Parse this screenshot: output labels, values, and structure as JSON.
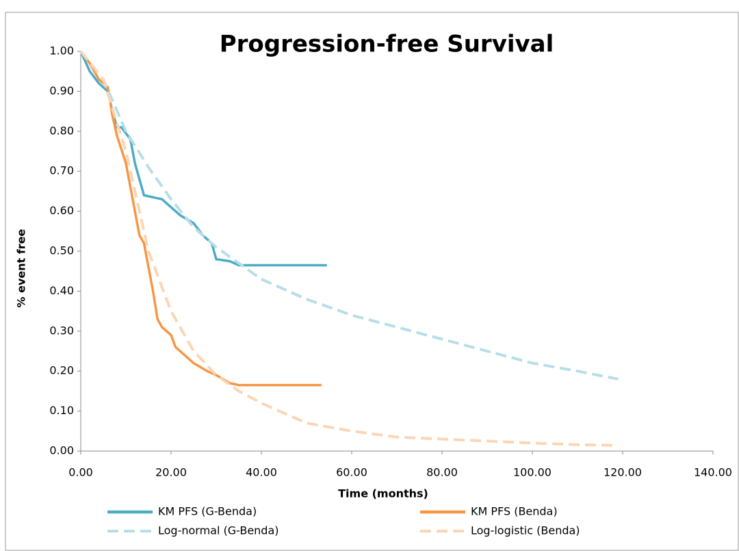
{
  "chart_data": {
    "type": "line",
    "title": "Progression-free Survival",
    "x_label": "Time (months)",
    "y_label": "% event free",
    "xlim": [
      0,
      140
    ],
    "xticks": [
      {
        "value": 0,
        "label": "0.00"
      },
      {
        "value": 20,
        "label": "20.00"
      },
      {
        "value": 40,
        "label": "40.00"
      },
      {
        "value": 60,
        "label": "60.00"
      },
      {
        "value": 80,
        "label": "80.00"
      },
      {
        "value": 100,
        "label": "100.00"
      },
      {
        "value": 120,
        "label": "120.00"
      },
      {
        "value": 140,
        "label": "140.00"
      }
    ],
    "ylim": [
      0,
      1
    ],
    "yticks": [
      {
        "value": 0,
        "label": "0.00"
      },
      {
        "value": 0.1,
        "label": "0.10"
      },
      {
        "value": 0.2,
        "label": "0.20"
      },
      {
        "value": 0.3,
        "label": "0.30"
      },
      {
        "value": 0.4,
        "label": "0.40"
      },
      {
        "value": 0.5,
        "label": "0.50"
      },
      {
        "value": 0.6,
        "label": "0.60"
      },
      {
        "value": 0.7,
        "label": "0.70"
      },
      {
        "value": 0.8,
        "label": "0.80"
      },
      {
        "value": 0.9,
        "label": "0.90"
      },
      {
        "value": 1,
        "label": "1.00"
      }
    ],
    "grid": false,
    "legend": "bottom",
    "series": [
      {
        "name": "KM PFS (G-Benda)",
        "color": "#4bacc6",
        "style": "solid",
        "x": [
          0,
          2,
          4,
          6,
          7,
          8,
          9,
          11,
          12,
          13,
          14,
          16,
          18,
          20,
          22,
          25,
          27,
          29,
          30,
          33,
          35,
          40,
          54.5
        ],
        "values": [
          1.0,
          0.95,
          0.92,
          0.9,
          0.85,
          0.81,
          0.81,
          0.78,
          0.72,
          0.68,
          0.64,
          0.635,
          0.63,
          0.61,
          0.59,
          0.57,
          0.54,
          0.52,
          0.48,
          0.475,
          0.465,
          0.465,
          0.465
        ]
      },
      {
        "name": "KM PFS (Benda)",
        "color": "#f79646",
        "style": "solid",
        "x": [
          0,
          2,
          4,
          5,
          6,
          7,
          8,
          10,
          11,
          12,
          13,
          14,
          15,
          16,
          17,
          18,
          20,
          21,
          23,
          25,
          28,
          30,
          33,
          35,
          53.3
        ],
        "values": [
          1.0,
          0.97,
          0.93,
          0.92,
          0.91,
          0.84,
          0.79,
          0.72,
          0.66,
          0.6,
          0.54,
          0.52,
          0.46,
          0.4,
          0.33,
          0.31,
          0.29,
          0.26,
          0.24,
          0.22,
          0.2,
          0.19,
          0.17,
          0.165,
          0.165
        ]
      },
      {
        "name": "Log-normal (G-Benda)",
        "color": "#b7dee8",
        "style": "dashed",
        "x": [
          0,
          5,
          10,
          15,
          20,
          25,
          30,
          35,
          40,
          50,
          60,
          70,
          80,
          90,
          100,
          110,
          119
        ],
        "values": [
          1.0,
          0.93,
          0.8,
          0.71,
          0.63,
          0.56,
          0.51,
          0.47,
          0.43,
          0.38,
          0.34,
          0.31,
          0.28,
          0.25,
          0.22,
          0.2,
          0.18
        ]
      },
      {
        "name": "Log-logistic (Benda)",
        "color": "#fcd5b5",
        "style": "dashed",
        "x": [
          0,
          5,
          10,
          15,
          20,
          25,
          30,
          35,
          40,
          50,
          60,
          70,
          80,
          90,
          100,
          110,
          119
        ],
        "values": [
          1.0,
          0.93,
          0.75,
          0.5,
          0.35,
          0.25,
          0.19,
          0.15,
          0.12,
          0.07,
          0.05,
          0.035,
          0.03,
          0.025,
          0.02,
          0.016,
          0.014
        ]
      }
    ]
  }
}
